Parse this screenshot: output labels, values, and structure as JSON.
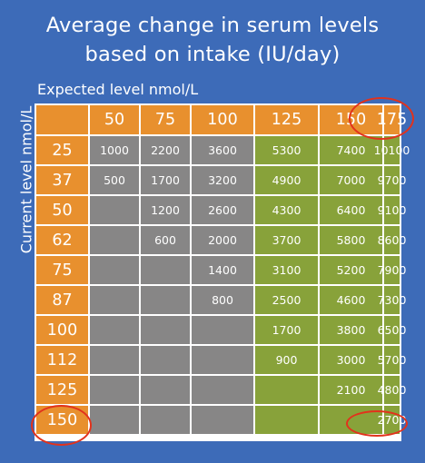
{
  "title_lines": [
    "Average change in serum levels",
    "based on intake (IU/day)"
  ],
  "xlabel": "Expected level nmol/L",
  "ylabel": "Current level nmol/L",
  "colors": {
    "background": "#3d6bb8",
    "header": "#e8902e",
    "gray": "#878686",
    "green": "#88a23a",
    "highlight": "#e2321c"
  },
  "chart_data": {
    "type": "table",
    "title": "Average change in serum levels based on intake (IU/day)",
    "xlabel": "Expected level nmol/L",
    "ylabel": "Current level nmol/L",
    "columns": [
      "50",
      "75",
      "100",
      "125",
      "150",
      "175"
    ],
    "rows": [
      "25",
      "37",
      "50",
      "62",
      "75",
      "87",
      "100",
      "112",
      "125",
      "150"
    ],
    "values": [
      [
        "1000",
        "2200",
        "3600",
        "5300",
        "7400",
        "10100"
      ],
      [
        "500",
        "1700",
        "3200",
        "4900",
        "7000",
        "9700"
      ],
      [
        "",
        "1200",
        "2600",
        "4300",
        "6400",
        "9100"
      ],
      [
        "",
        "600",
        "2000",
        "3700",
        "5800",
        "8600"
      ],
      [
        "",
        "",
        "1400",
        "3100",
        "5200",
        "7900"
      ],
      [
        "",
        "",
        "800",
        "2500",
        "4600",
        "7300"
      ],
      [
        "",
        "",
        "",
        "1700",
        "3800",
        "6500"
      ],
      [
        "",
        "",
        "",
        "900",
        "3000",
        "5700"
      ],
      [
        "",
        "",
        "",
        "",
        "2100",
        "4800"
      ],
      [
        "",
        "",
        "",
        "",
        "",
        "2700"
      ]
    ],
    "green_from_column": 3,
    "highlighted": [
      "column 175",
      "row 150",
      "cell 150/175"
    ]
  }
}
